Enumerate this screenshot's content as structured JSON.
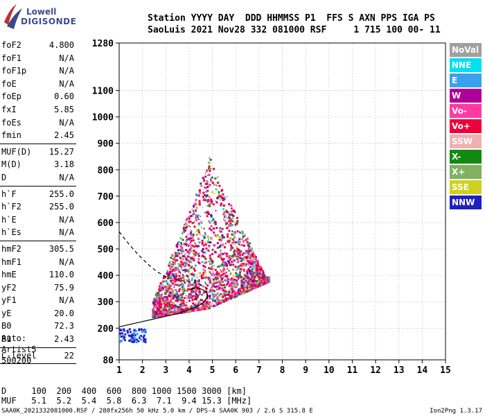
{
  "logo": {
    "line1": "Lowell",
    "line2": "DIGISONDE"
  },
  "header": {
    "line1": "Station YYYY DAY  DDD HHMMSS P1  FFS S AXN PPS IGA PS",
    "line2": "SaoLuis 2021 Nov28 332 081000 RSF     1 715 100 00- 11"
  },
  "params": [
    {
      "label": "foF2",
      "value": "4.800"
    },
    {
      "label": "foF1",
      "value": "N/A"
    },
    {
      "label": "foF1p",
      "value": "N/A"
    },
    {
      "label": "foE",
      "value": "N/A"
    },
    {
      "label": "foEp",
      "value": "0.60"
    },
    {
      "label": "fxI",
      "value": "5.85"
    },
    {
      "label": "foEs",
      "value": "N/A"
    },
    {
      "label": "fmin",
      "value": "2.45"
    },
    {
      "sep": true
    },
    {
      "label": "MUF(D)",
      "value": "15.27"
    },
    {
      "label": "M(D)",
      "value": "3.18"
    },
    {
      "label": "D",
      "value": "N/A"
    },
    {
      "sep": true
    },
    {
      "label": "h`F",
      "value": "255.0"
    },
    {
      "label": "h`F2",
      "value": "255.0"
    },
    {
      "label": "h`E",
      "value": "N/A"
    },
    {
      "label": "h`Es",
      "value": "N/A"
    },
    {
      "sep": true
    },
    {
      "label": "hmF2",
      "value": "305.5"
    },
    {
      "label": "hmF1",
      "value": "N/A"
    },
    {
      "label": "hmE",
      "value": "110.0"
    },
    {
      "label": "yF2",
      "value": "75.9"
    },
    {
      "label": "yF1",
      "value": "N/A"
    },
    {
      "label": "yE",
      "value": "20.0"
    },
    {
      "label": "B0",
      "value": "72.3"
    },
    {
      "label": "B1",
      "value": "2.43"
    },
    {
      "sep": true
    },
    {
      "label": "C-level",
      "value": "22"
    },
    {
      "sep": true
    }
  ],
  "auto": {
    "line1": "Auto:",
    "line2": "Artist5",
    "line3": "500200"
  },
  "legend": [
    {
      "label": "NoVal",
      "color": "#a0a0a0"
    },
    {
      "label": "NNE",
      "color": "#00e0f0"
    },
    {
      "label": "E",
      "color": "#3aa0f0"
    },
    {
      "label": "W",
      "color": "#b0009a"
    },
    {
      "label": "Vo-",
      "color": "#ff3aa0"
    },
    {
      "label": "Vo+",
      "color": "#f0003a"
    },
    {
      "label": "SSW",
      "color": "#f0b0b0"
    },
    {
      "label": "X-",
      "color": "#108a10"
    },
    {
      "label": "X+",
      "color": "#80b060"
    },
    {
      "label": "SSE",
      "color": "#d0d020"
    },
    {
      "label": "NNW",
      "color": "#2020c0"
    }
  ],
  "bottom": {
    "line1": "D     100  200  400  600  800 1000 1500 3000 [km]",
    "line2": "MUF   5.1  5.2  5.4  5.8  6.3  7.1  9.4 15.3 [MHz]"
  },
  "footer": "SAA0K_2021332081000.RSF / 280fx256h 50 kHz 5.0 km / DPS-4 SAA0K 903 / 2.6 S 315.8 E",
  "version": "Ion2Png 1.3.17",
  "chart_data": {
    "type": "scatter",
    "title": "",
    "xlabel": "",
    "ylabel": "",
    "xlim": [
      1,
      15
    ],
    "ylim": [
      80,
      1280
    ],
    "x_ticks": [
      1,
      2,
      3,
      4,
      5,
      6,
      7,
      8,
      9,
      10,
      11,
      12,
      13,
      14,
      15
    ],
    "y_ticks": [
      80,
      200,
      300,
      400,
      500,
      600,
      700,
      800,
      900,
      1000,
      1100,
      1280
    ],
    "series": [
      {
        "name": "X-O profile (solid)",
        "x": [
          1.0,
          1.5,
          2.0,
          2.5,
          3.0,
          3.5,
          4.0,
          4.3,
          4.5,
          4.65,
          4.75,
          4.8
        ],
        "y": [
          205,
          215,
          225,
          235,
          245,
          255,
          270,
          280,
          290,
          300,
          315,
          330
        ]
      },
      {
        "name": "hmF2 trace (solid)",
        "x": [
          4.0,
          4.2,
          4.4,
          4.6,
          4.75,
          4.8
        ],
        "y": [
          345,
          352,
          352,
          345,
          335,
          310
        ]
      },
      {
        "name": "Extrapolated (dashed)",
        "x": [
          1.0,
          1.4,
          1.8,
          2.2,
          2.6,
          3.0,
          3.4,
          3.8,
          4.2,
          4.6,
          4.8
        ],
        "y": [
          565,
          520,
          480,
          445,
          415,
          395,
          385,
          378,
          372,
          360,
          350
        ]
      }
    ],
    "echo_clusters": [
      {
        "fmin": 2.4,
        "fmax": 7.4,
        "hmin": 240,
        "hmax": 880,
        "peak_f": 4.8,
        "peak_h": 380
      },
      {
        "fmin": 1.0,
        "fmax": 2.1,
        "hmin": 150,
        "hmax": 200,
        "peak_f": 1.4,
        "peak_h": 175
      }
    ]
  }
}
